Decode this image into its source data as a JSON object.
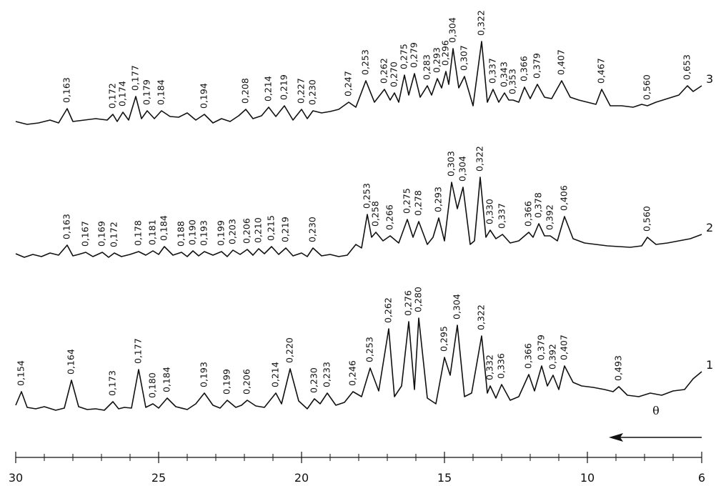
{
  "chart_data": {
    "type": "line",
    "x_label": "θ",
    "color": "#111111",
    "xlim": [
      30,
      6
    ],
    "xticks": [
      30,
      25,
      20,
      15,
      10,
      6
    ],
    "xticks_minor": [
      29,
      28,
      27,
      26,
      24,
      23,
      22,
      21,
      19,
      18,
      17,
      16,
      14,
      13,
      12,
      11,
      9,
      8,
      7
    ],
    "ylim": [
      0,
      140
    ],
    "series": [
      {
        "name": "1",
        "x": [
          30,
          29.8,
          29.6,
          29.3,
          29.0,
          28.6,
          28.3,
          28.05,
          27.8,
          27.5,
          27.2,
          26.9,
          26.6,
          26.4,
          26.2,
          25.95,
          25.7,
          25.45,
          25.2,
          25.0,
          24.7,
          24.4,
          24.0,
          23.7,
          23.4,
          23.1,
          22.85,
          22.6,
          22.3,
          22.1,
          21.9,
          21.6,
          21.3,
          20.9,
          20.7,
          20.4,
          20.1,
          19.8,
          19.55,
          19.35,
          19.1,
          18.8,
          18.5,
          18.2,
          17.9,
          17.6,
          17.3,
          16.95,
          16.75,
          16.5,
          16.25,
          16.05,
          15.9,
          15.6,
          15.3,
          15.0,
          14.8,
          14.55,
          14.3,
          14.05,
          13.7,
          13.5,
          13.4,
          13.2,
          13.0,
          12.7,
          12.4,
          12.05,
          11.85,
          11.6,
          11.4,
          11.2,
          11.0,
          10.8,
          10.5,
          10.2,
          9.8,
          9.4,
          9.1,
          8.9,
          8.6,
          8.2,
          7.8,
          7.4,
          7.0,
          6.6,
          6.3,
          6.0
        ],
        "values": [
          8,
          27,
          5,
          3,
          6,
          1,
          4,
          43,
          6,
          2,
          3,
          1,
          13,
          3,
          5,
          4,
          58,
          5,
          10,
          4,
          18,
          6,
          2,
          10,
          25,
          8,
          4,
          15,
          5,
          8,
          15,
          7,
          5,
          25,
          10,
          59,
          14,
          3,
          17,
          10,
          25,
          8,
          12,
          27,
          20,
          60,
          28,
          115,
          20,
          35,
          125,
          30,
          130,
          18,
          10,
          75,
          50,
          120,
          20,
          25,
          105,
          25,
          35,
          18,
          37,
          15,
          20,
          51,
          28,
          63,
          35,
          50,
          30,
          63,
          40,
          35,
          33,
          30,
          27,
          34,
          22,
          20,
          25,
          22,
          28,
          30,
          45,
          55
        ],
        "peaks": [
          {
            "x": 29.8,
            "label": "0,154"
          },
          {
            "x": 28.05,
            "label": "0,164"
          },
          {
            "x": 26.6,
            "label": "0,173"
          },
          {
            "x": 25.7,
            "label": "0,177"
          },
          {
            "x": 25.2,
            "label": "0,180"
          },
          {
            "x": 24.7,
            "label": "0,184"
          },
          {
            "x": 23.4,
            "label": "0,193"
          },
          {
            "x": 22.6,
            "label": "0,199"
          },
          {
            "x": 21.9,
            "label": "0,206"
          },
          {
            "x": 20.9,
            "label": "0,214"
          },
          {
            "x": 20.4,
            "label": "0,220"
          },
          {
            "x": 19.55,
            "label": "0,230"
          },
          {
            "x": 19.1,
            "label": "0,233"
          },
          {
            "x": 18.2,
            "label": "0,246"
          },
          {
            "x": 17.6,
            "label": "0,253"
          },
          {
            "x": 16.95,
            "label": "0,262"
          },
          {
            "x": 16.25,
            "label": "0,276"
          },
          {
            "x": 15.9,
            "label": "0,280"
          },
          {
            "x": 15.0,
            "label": "0,295"
          },
          {
            "x": 14.55,
            "label": "0,304"
          },
          {
            "x": 13.7,
            "label": "0,322"
          },
          {
            "x": 13.4,
            "label": "0,332"
          },
          {
            "x": 13.0,
            "label": "0,336"
          },
          {
            "x": 12.05,
            "label": "0,366"
          },
          {
            "x": 11.6,
            "label": "0,379"
          },
          {
            "x": 11.2,
            "label": "0,392"
          },
          {
            "x": 10.8,
            "label": "0,407"
          },
          {
            "x": 8.9,
            "label": "0,493"
          }
        ]
      },
      {
        "name": "2",
        "x": [
          30,
          29.7,
          29.4,
          29.1,
          28.8,
          28.5,
          28.2,
          28.0,
          27.8,
          27.55,
          27.3,
          26.97,
          26.75,
          26.55,
          26.3,
          26.0,
          25.7,
          25.45,
          25.2,
          25.0,
          24.8,
          24.5,
          24.2,
          24.0,
          23.8,
          23.6,
          23.4,
          23.1,
          22.8,
          22.6,
          22.4,
          22.15,
          21.9,
          21.7,
          21.5,
          21.3,
          21.05,
          20.8,
          20.55,
          20.3,
          20.0,
          19.8,
          19.6,
          19.3,
          19.0,
          18.7,
          18.4,
          18.1,
          17.9,
          17.7,
          17.55,
          17.4,
          17.15,
          16.9,
          16.6,
          16.3,
          16.1,
          15.9,
          15.6,
          15.4,
          15.2,
          15.0,
          14.75,
          14.55,
          14.35,
          14.1,
          13.95,
          13.75,
          13.55,
          13.4,
          13.2,
          12.97,
          12.7,
          12.4,
          12.05,
          11.9,
          11.7,
          11.5,
          11.3,
          11.05,
          10.8,
          10.5,
          10.1,
          9.7,
          9.3,
          8.9,
          8.5,
          8.1,
          7.9,
          7.6,
          7.2,
          6.8,
          6.4,
          6.0
        ],
        "values": [
          7,
          2,
          6,
          3,
          8,
          5,
          19,
          4,
          6,
          9,
          3,
          9,
          2,
          8,
          3,
          6,
          10,
          5,
          11,
          6,
          17,
          5,
          9,
          3,
          11,
          4,
          10,
          5,
          10,
          3,
          12,
          6,
          13,
          5,
          14,
          7,
          17,
          6,
          15,
          4,
          8,
          3,
          15,
          4,
          6,
          3,
          5,
          20,
          15,
          62,
          30,
          37,
          25,
          32,
          22,
          55,
          30,
          52,
          20,
          30,
          57,
          25,
          107,
          70,
          100,
          20,
          25,
          114,
          30,
          40,
          28,
          34,
          22,
          25,
          37,
          30,
          49,
          32,
          32,
          25,
          59,
          28,
          22,
          20,
          18,
          17,
          16,
          18,
          30,
          20,
          22,
          25,
          28,
          34
        ],
        "peaks": [
          {
            "x": 28.2,
            "label": "0,163"
          },
          {
            "x": 27.55,
            "label": "0,167"
          },
          {
            "x": 26.97,
            "label": "0,169"
          },
          {
            "x": 26.55,
            "label": "0,172"
          },
          {
            "x": 25.7,
            "label": "0,178"
          },
          {
            "x": 25.2,
            "label": "0,181"
          },
          {
            "x": 24.8,
            "label": "0,184"
          },
          {
            "x": 24.2,
            "label": "0,188"
          },
          {
            "x": 23.8,
            "label": "0,190"
          },
          {
            "x": 23.4,
            "label": "0,193"
          },
          {
            "x": 22.8,
            "label": "0,199"
          },
          {
            "x": 22.4,
            "label": "0,203"
          },
          {
            "x": 21.9,
            "label": "0,206"
          },
          {
            "x": 21.5,
            "label": "0,210"
          },
          {
            "x": 21.05,
            "label": "0,215"
          },
          {
            "x": 20.55,
            "label": "0,219"
          },
          {
            "x": 19.6,
            "label": "0,230"
          },
          {
            "x": 17.7,
            "label": "0,253"
          },
          {
            "x": 17.4,
            "label": "0,258"
          },
          {
            "x": 16.9,
            "label": "0,266"
          },
          {
            "x": 16.3,
            "label": "0,275"
          },
          {
            "x": 15.9,
            "label": "0,278"
          },
          {
            "x": 15.2,
            "label": "0,293"
          },
          {
            "x": 14.75,
            "label": "0,303"
          },
          {
            "x": 14.35,
            "label": "0,304"
          },
          {
            "x": 13.75,
            "label": "0,322"
          },
          {
            "x": 13.4,
            "label": "0,330"
          },
          {
            "x": 12.97,
            "label": "0,337"
          },
          {
            "x": 12.05,
            "label": "0,366"
          },
          {
            "x": 11.7,
            "label": "0,378"
          },
          {
            "x": 11.3,
            "label": "0,392"
          },
          {
            "x": 10.8,
            "label": "0,406"
          },
          {
            "x": 7.9,
            "label": "0,560"
          }
        ]
      },
      {
        "name": "3",
        "x": [
          30,
          29.6,
          29.2,
          28.8,
          28.5,
          28.2,
          28.0,
          27.6,
          27.2,
          26.8,
          26.6,
          26.45,
          26.25,
          26.05,
          25.8,
          25.6,
          25.4,
          25.15,
          24.9,
          24.6,
          24.3,
          24.0,
          23.7,
          23.4,
          23.1,
          22.8,
          22.5,
          22.2,
          21.95,
          21.7,
          21.4,
          21.15,
          20.9,
          20.6,
          20.3,
          20.0,
          19.8,
          19.6,
          19.3,
          19.0,
          18.7,
          18.35,
          18.1,
          17.75,
          17.45,
          17.1,
          16.9,
          16.75,
          16.6,
          16.4,
          16.25,
          16.05,
          15.85,
          15.6,
          15.45,
          15.25,
          15.1,
          14.95,
          14.85,
          14.7,
          14.5,
          14.3,
          14.0,
          13.7,
          13.5,
          13.3,
          13.1,
          12.9,
          12.75,
          12.6,
          12.4,
          12.2,
          12.0,
          11.75,
          11.5,
          11.25,
          10.9,
          10.6,
          10.3,
          10.0,
          9.7,
          9.5,
          9.2,
          8.8,
          8.4,
          8.1,
          7.9,
          7.6,
          7.2,
          6.8,
          6.5,
          6.3,
          6.0
        ],
        "values": [
          8,
          4,
          6,
          10,
          6,
          26,
          8,
          10,
          12,
          10,
          18,
          8,
          21,
          10,
          43,
          12,
          23,
          12,
          23,
          15,
          14,
          20,
          10,
          18,
          6,
          12,
          8,
          16,
          25,
          12,
          16,
          28,
          15,
          30,
          10,
          25,
          12,
          23,
          20,
          22,
          25,
          35,
          28,
          65,
          35,
          53,
          38,
          48,
          35,
          73,
          45,
          75,
          42,
          58,
          45,
          68,
          55,
          78,
          60,
          110,
          55,
          71,
          30,
          120,
          35,
          53,
          35,
          48,
          38,
          38,
          35,
          56,
          40,
          60,
          42,
          40,
          65,
          42,
          38,
          35,
          32,
          53,
          30,
          30,
          28,
          32,
          30,
          35,
          40,
          45,
          58,
          50,
          58
        ],
        "peaks": [
          {
            "x": 28.2,
            "label": "0,163"
          },
          {
            "x": 26.6,
            "label": "0,172"
          },
          {
            "x": 26.25,
            "label": "0,174"
          },
          {
            "x": 25.8,
            "label": "0,177"
          },
          {
            "x": 25.4,
            "label": "0,179"
          },
          {
            "x": 24.9,
            "label": "0,184"
          },
          {
            "x": 23.4,
            "label": "0,194"
          },
          {
            "x": 21.95,
            "label": "0,208"
          },
          {
            "x": 21.15,
            "label": "0,214"
          },
          {
            "x": 20.6,
            "label": "0,219"
          },
          {
            "x": 20.0,
            "label": "0,227"
          },
          {
            "x": 19.6,
            "label": "0,230"
          },
          {
            "x": 18.35,
            "label": "0,247"
          },
          {
            "x": 17.75,
            "label": "0,253"
          },
          {
            "x": 17.1,
            "label": "0,262"
          },
          {
            "x": 16.75,
            "label": "0,270"
          },
          {
            "x": 16.4,
            "label": "0,275"
          },
          {
            "x": 16.05,
            "label": "0,279"
          },
          {
            "x": 15.6,
            "label": "0,283"
          },
          {
            "x": 15.25,
            "label": "0,293"
          },
          {
            "x": 14.95,
            "label": "0,296"
          },
          {
            "x": 14.7,
            "label": "0,304"
          },
          {
            "x": 14.3,
            "label": "0,307"
          },
          {
            "x": 13.7,
            "label": "0,322"
          },
          {
            "x": 13.3,
            "label": "0,337"
          },
          {
            "x": 12.9,
            "label": "0,343"
          },
          {
            "x": 12.6,
            "label": "0,353"
          },
          {
            "x": 12.2,
            "label": "0,366"
          },
          {
            "x": 11.75,
            "label": "0,379"
          },
          {
            "x": 10.9,
            "label": "0,407"
          },
          {
            "x": 9.5,
            "label": "0,467"
          },
          {
            "x": 7.9,
            "label": "0,560"
          },
          {
            "x": 6.5,
            "label": "0,653"
          }
        ]
      }
    ]
  }
}
